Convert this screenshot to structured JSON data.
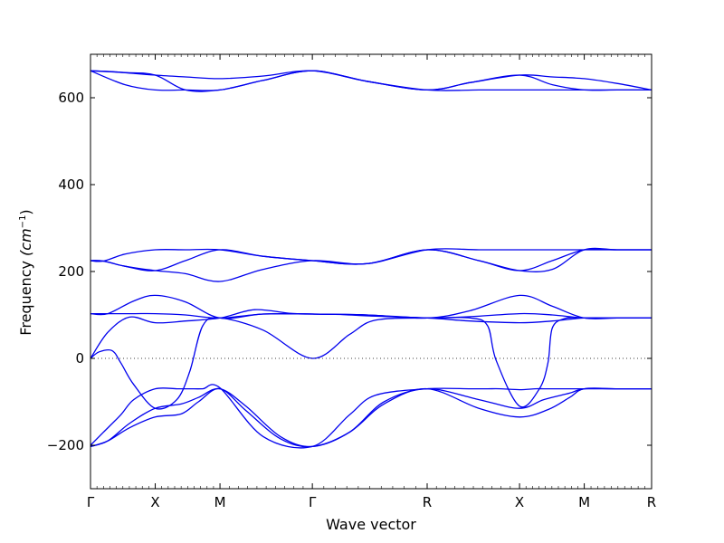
{
  "chart_data": {
    "type": "line",
    "xlabel": "Wave vector",
    "ylabel": "Frequency (cm⁻¹)",
    "ylabel_main": "Frequency ",
    "ylabel_unit": "(cm",
    "ylabel_exp": "−1",
    "ylabel_close": ")",
    "ylim": [
      -300,
      700
    ],
    "yticks": [
      -200,
      0,
      200,
      400,
      600
    ],
    "ytick_labels": [
      "−200",
      "0",
      "200",
      "400",
      "600"
    ],
    "xlim": [
      0,
      6.5
    ],
    "xticks": [
      {
        "x": 0,
        "label": "Γ"
      },
      {
        "x": 0.75,
        "label": "X"
      },
      {
        "x": 1.5,
        "label": "M"
      },
      {
        "x": 2.57,
        "label": "Γ"
      },
      {
        "x": 3.9,
        "label": "R"
      },
      {
        "x": 4.97,
        "label": "X"
      },
      {
        "x": 5.72,
        "label": "M"
      },
      {
        "x": 6.5,
        "label": "R"
      }
    ],
    "grid": false,
    "zero_line": "dotted",
    "series_color": "#0000ee",
    "series": [
      {
        "x": [
          0,
          0.25,
          0.5,
          0.75,
          1.1,
          1.5,
          2.0,
          2.57,
          3.2,
          3.9,
          4.4,
          4.97,
          5.35,
          5.72,
          6.1,
          6.5
        ],
        "values": [
          662,
          660,
          656,
          652,
          648,
          644,
          650,
          662,
          638,
          618,
          635,
          652,
          648,
          644,
          633,
          618
        ]
      },
      {
        "x": [
          0,
          0.4,
          0.75,
          1.1,
          1.5,
          2.0,
          2.57,
          3.2,
          3.9,
          4.5,
          4.97,
          5.35,
          5.72,
          6.1,
          6.5
        ],
        "values": [
          662,
          658,
          652,
          618,
          618,
          640,
          662,
          638,
          618,
          618,
          618,
          618,
          618,
          618,
          618
        ]
      },
      {
        "x": [
          0,
          0.4,
          0.75,
          1.1,
          1.5,
          2.0,
          2.57,
          3.2,
          3.9,
          4.4,
          4.97,
          5.35,
          5.72,
          6.1,
          6.5
        ],
        "values": [
          662,
          630,
          618,
          618,
          618,
          640,
          662,
          638,
          618,
          635,
          652,
          630,
          618,
          618,
          618
        ]
      },
      {
        "x": [
          0,
          0.15,
          0.4,
          0.75,
          1.1,
          1.5,
          2.0,
          2.57,
          3.2,
          3.9,
          4.5,
          4.97,
          5.35,
          5.72,
          6.1,
          6.5
        ],
        "values": [
          225,
          224,
          240,
          250,
          250,
          250,
          235,
          225,
          218,
          250,
          250,
          250,
          250,
          250,
          250,
          250
        ]
      },
      {
        "x": [
          0,
          0.15,
          0.4,
          0.75,
          1.1,
          1.5,
          2.0,
          2.57,
          3.2,
          3.9,
          4.5,
          4.97,
          5.35,
          5.72,
          6.1,
          6.5
        ],
        "values": [
          225,
          224,
          212,
          202,
          225,
          250,
          235,
          225,
          218,
          250,
          225,
          202,
          225,
          250,
          250,
          250
        ]
      },
      {
        "x": [
          0,
          0.15,
          0.4,
          0.75,
          1.1,
          1.5,
          2.0,
          2.57,
          3.2,
          3.9,
          4.5,
          4.97,
          5.35,
          5.72,
          6.1,
          6.5
        ],
        "values": [
          225,
          224,
          212,
          202,
          195,
          177,
          205,
          225,
          218,
          250,
          225,
          202,
          205,
          250,
          250,
          250
        ]
      },
      {
        "x": [
          0,
          0.2,
          0.5,
          0.75,
          1.1,
          1.5,
          2.0,
          2.57,
          3.2,
          3.9,
          4.4,
          4.97,
          5.35,
          5.72,
          6.1,
          6.5
        ],
        "values": [
          103,
          103,
          132,
          145,
          130,
          93,
          102,
          102,
          100,
          93,
          110,
          145,
          120,
          93,
          93,
          93
        ]
      },
      {
        "x": [
          0,
          0.2,
          0.5,
          0.75,
          1.1,
          1.5,
          2.0,
          2.57,
          3.2,
          3.9,
          4.4,
          4.97,
          5.35,
          5.72,
          6.1,
          6.5
        ],
        "values": [
          103,
          103,
          103,
          103,
          100,
          93,
          102,
          102,
          100,
          93,
          96,
          103,
          100,
          93,
          93,
          93
        ]
      },
      {
        "x": [
          0,
          0.2,
          0.45,
          0.75,
          1.1,
          1.5,
          1.9,
          2.3,
          2.57,
          2.9,
          3.2,
          3.9,
          4.4,
          4.97,
          5.35,
          5.72,
          6.1,
          6.5
        ],
        "values": [
          0,
          60,
          95,
          82,
          86,
          93,
          112,
          104,
          102,
          101,
          98,
          93,
          86,
          82,
          86,
          93,
          93,
          93
        ]
      },
      {
        "x": [
          0,
          0.1,
          0.25,
          0.35,
          0.5,
          0.75,
          1.0,
          1.15,
          1.3,
          1.5,
          2.0,
          2.57,
          3.0,
          3.3,
          3.9,
          4.4,
          4.6,
          4.7,
          4.97,
          5.2,
          5.3,
          5.35,
          5.5,
          5.72,
          6.1,
          6.5
        ],
        "values": [
          0,
          15,
          18,
          -10,
          -60,
          -115,
          -95,
          -30,
          75,
          93,
          65,
          0,
          55,
          88,
          93,
          93,
          75,
          -5,
          -110,
          -70,
          -10,
          70,
          92,
          93,
          93,
          93
        ]
      },
      {
        "x": [
          0,
          0.15,
          0.35,
          0.5,
          0.75,
          1.0,
          1.15,
          1.3,
          1.5,
          2.0,
          2.57,
          3.0,
          3.3,
          3.9,
          4.4,
          4.6,
          4.75,
          4.97,
          5.15,
          5.25,
          5.35,
          5.5,
          5.72,
          6.1,
          6.5
        ],
        "values": [
          -200,
          -170,
          -130,
          -95,
          -70,
          -70,
          -70,
          -70,
          -68,
          -180,
          -203,
          -130,
          -85,
          -70,
          -70,
          -70,
          -70,
          -72,
          -70,
          -70,
          -70,
          -70,
          -70,
          -70,
          -70
        ]
      },
      {
        "x": [
          0,
          0.2,
          0.45,
          0.75,
          1.05,
          1.25,
          1.5,
          1.8,
          2.2,
          2.57,
          3.0,
          3.4,
          3.9,
          4.5,
          4.97,
          5.25,
          5.55,
          5.72,
          6.1,
          6.5
        ],
        "values": [
          -203,
          -190,
          -150,
          -115,
          -105,
          -90,
          -70,
          -110,
          -180,
          -203,
          -170,
          -100,
          -70,
          -95,
          -115,
          -95,
          -80,
          -70,
          -70,
          -70
        ]
      },
      {
        "x": [
          0,
          0.2,
          0.45,
          0.75,
          1.05,
          1.25,
          1.5,
          1.8,
          2.2,
          2.57,
          3.0,
          3.4,
          3.9,
          4.5,
          4.97,
          5.3,
          5.55,
          5.72,
          6.1,
          6.5
        ],
        "values": [
          -203,
          -190,
          -160,
          -135,
          -128,
          -100,
          -70,
          -120,
          -185,
          -203,
          -170,
          -105,
          -70,
          -115,
          -135,
          -118,
          -90,
          -70,
          -70,
          -70
        ]
      }
    ]
  }
}
